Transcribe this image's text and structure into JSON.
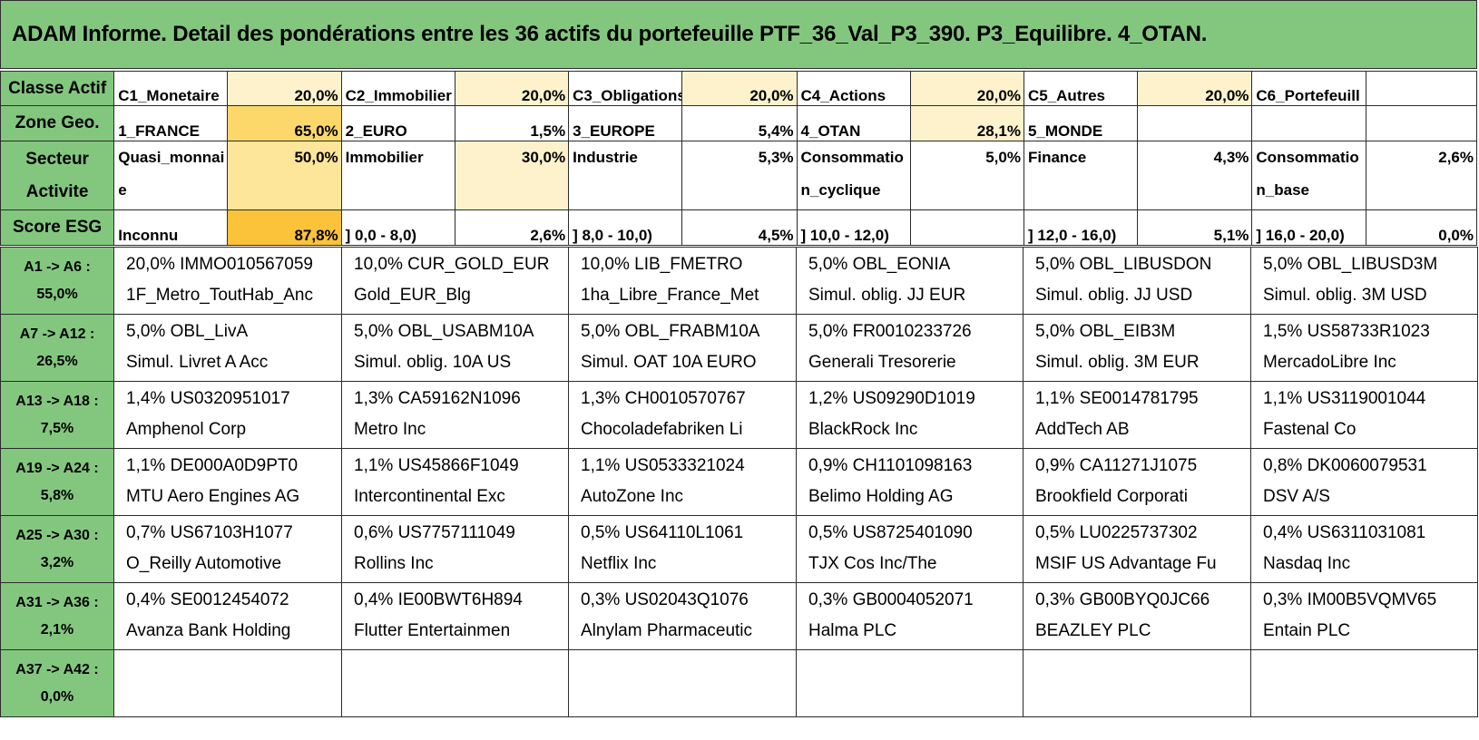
{
  "title": "ADAM Informe. Detail des pondérations entre les 36 actifs du portefeuille PTF_36_Val_P3_390. P3_Equilibre. 4_OTAN.",
  "summary": {
    "classe": {
      "header": "Classe Actif",
      "cells": [
        {
          "label": "C1_Monetaire",
          "pct": "20,0%"
        },
        {
          "label": "C2_Immobilier",
          "pct": "20,0%"
        },
        {
          "label": "C3_Obligations",
          "pct": "20,0%"
        },
        {
          "label": "C4_Actions",
          "pct": "20,0%"
        },
        {
          "label": "C5_Autres",
          "pct": "20,0%"
        },
        {
          "label": "C6_Portefeuill",
          "pct": ""
        }
      ]
    },
    "zone": {
      "header": "Zone Geo.",
      "cells": [
        {
          "label": "1_FRANCE",
          "pct": "65,0%"
        },
        {
          "label": "2_EURO",
          "pct": "1,5%"
        },
        {
          "label": "3_EUROPE",
          "pct": "5,4%"
        },
        {
          "label": "4_OTAN",
          "pct": "28,1%"
        },
        {
          "label": "5_MONDE",
          "pct": ""
        },
        {
          "label": "",
          "pct": ""
        }
      ]
    },
    "secteur": {
      "header": "Secteur Activite",
      "cells": [
        {
          "label": "Quasi_monnaie",
          "pct": "50,0%"
        },
        {
          "label": "Immobilier",
          "pct": "30,0%"
        },
        {
          "label": "Industrie",
          "pct": "5,3%"
        },
        {
          "label": "Consommation_cyclique",
          "pct": "5,0%"
        },
        {
          "label": "Finance",
          "pct": "4,3%"
        },
        {
          "label": "Consommation_base",
          "pct": "2,6%"
        }
      ]
    },
    "esg": {
      "header": "Score ESG",
      "cells": [
        {
          "label": "Inconnu",
          "pct": "87,8%"
        },
        {
          "label": "] 0,0 - 8,0)",
          "pct": "2,6%"
        },
        {
          "label": "] 8,0 - 10,0)",
          "pct": "4,5%"
        },
        {
          "label": "] 10,0 - 12,0)",
          "pct": ""
        },
        {
          "label": "] 12,0 - 16,0)",
          "pct": "5,1%"
        },
        {
          "label": "] 16,0 - 20,0)",
          "pct": "0,0%"
        }
      ]
    }
  },
  "asset_rows": [
    {
      "range": "A1 -> A6 :",
      "total": "55,0%",
      "assets": [
        {
          "weight_code": "20,0% IMMO010567059",
          "name": "1F_Metro_ToutHab_Anc"
        },
        {
          "weight_code": "10,0% CUR_GOLD_EUR",
          "name": "Gold_EUR_Blg"
        },
        {
          "weight_code": "10,0% LIB_FMETRO",
          "name": "1ha_Libre_France_Met"
        },
        {
          "weight_code": "5,0% OBL_EONIA",
          "name": "Simul. oblig. JJ EUR"
        },
        {
          "weight_code": "5,0% OBL_LIBUSDON",
          "name": "Simul. oblig. JJ USD"
        },
        {
          "weight_code": "5,0% OBL_LIBUSD3M",
          "name": "Simul. oblig. 3M USD"
        }
      ]
    },
    {
      "range": "A7 -> A12 :",
      "total": "26,5%",
      "assets": [
        {
          "weight_code": "5,0% OBL_LivA",
          "name": "Simul. Livret A Acc"
        },
        {
          "weight_code": "5,0% OBL_USABM10A",
          "name": "Simul. oblig. 10A US"
        },
        {
          "weight_code": "5,0% OBL_FRABM10A",
          "name": "Simul. OAT 10A EURO"
        },
        {
          "weight_code": "5,0% FR0010233726",
          "name": "Generali Tresorerie"
        },
        {
          "weight_code": "5,0% OBL_EIB3M",
          "name": "Simul. oblig. 3M EUR"
        },
        {
          "weight_code": "1,5% US58733R1023",
          "name": "MercadoLibre Inc"
        }
      ]
    },
    {
      "range": "A13 -> A18 :",
      "total": "7,5%",
      "assets": [
        {
          "weight_code": "1,4% US0320951017",
          "name": "Amphenol Corp"
        },
        {
          "weight_code": "1,3% CA59162N1096",
          "name": "Metro Inc"
        },
        {
          "weight_code": "1,3% CH0010570767",
          "name": "Chocoladefabriken Li"
        },
        {
          "weight_code": "1,2% US09290D1019",
          "name": "BlackRock Inc"
        },
        {
          "weight_code": "1,1% SE0014781795",
          "name": "AddTech AB"
        },
        {
          "weight_code": "1,1% US3119001044",
          "name": "Fastenal Co"
        }
      ]
    },
    {
      "range": "A19 -> A24 :",
      "total": "5,8%",
      "assets": [
        {
          "weight_code": "1,1% DE000A0D9PT0",
          "name": "MTU Aero Engines AG"
        },
        {
          "weight_code": "1,1% US45866F1049",
          "name": "Intercontinental Exc"
        },
        {
          "weight_code": "1,1% US0533321024",
          "name": "AutoZone Inc"
        },
        {
          "weight_code": "0,9% CH1101098163",
          "name": "Belimo Holding AG"
        },
        {
          "weight_code": "0,9% CA11271J1075",
          "name": "Brookfield Corporati"
        },
        {
          "weight_code": "0,8% DK0060079531",
          "name": "DSV A/S"
        }
      ]
    },
    {
      "range": "A25 -> A30 :",
      "total": "3,2%",
      "assets": [
        {
          "weight_code": "0,7% US67103H1077",
          "name": "O_Reilly Automotive"
        },
        {
          "weight_code": "0,6% US7757111049",
          "name": "Rollins Inc"
        },
        {
          "weight_code": "0,5% US64110L1061",
          "name": "Netflix Inc"
        },
        {
          "weight_code": "0,5% US8725401090",
          "name": "TJX Cos Inc/The"
        },
        {
          "weight_code": "0,5% LU0225737302",
          "name": "MSIF US Advantage Fu"
        },
        {
          "weight_code": "0,4% US6311031081",
          "name": "Nasdaq Inc"
        }
      ]
    },
    {
      "range": "A31 -> A36 :",
      "total": "2,1%",
      "assets": [
        {
          "weight_code": "0,4% SE0012454072",
          "name": "Avanza Bank Holding"
        },
        {
          "weight_code": "0,4% IE00BWT6H894",
          "name": "Flutter Entertainmen"
        },
        {
          "weight_code": "0,3% US02043Q1076",
          "name": "Alnylam Pharmaceutic"
        },
        {
          "weight_code": "0,3% GB0004052071",
          "name": "Halma PLC"
        },
        {
          "weight_code": "0,3% GB00BYQ0JC66",
          "name": "BEAZLEY PLC"
        },
        {
          "weight_code": "0,3% IM00B5VQMV65",
          "name": "Entain PLC"
        }
      ]
    },
    {
      "range": "A37 -> A42 :",
      "total": "0,0%",
      "assets": [
        {
          "weight_code": "",
          "name": ""
        },
        {
          "weight_code": "",
          "name": ""
        },
        {
          "weight_code": "",
          "name": ""
        },
        {
          "weight_code": "",
          "name": ""
        },
        {
          "weight_code": "",
          "name": ""
        },
        {
          "weight_code": "",
          "name": ""
        }
      ]
    }
  ],
  "colors": {
    "header_green": "#83c77f",
    "weight_shades": [
      "#fdf2cc",
      "#fde699",
      "#fcd86a",
      "#fbc33a"
    ]
  }
}
